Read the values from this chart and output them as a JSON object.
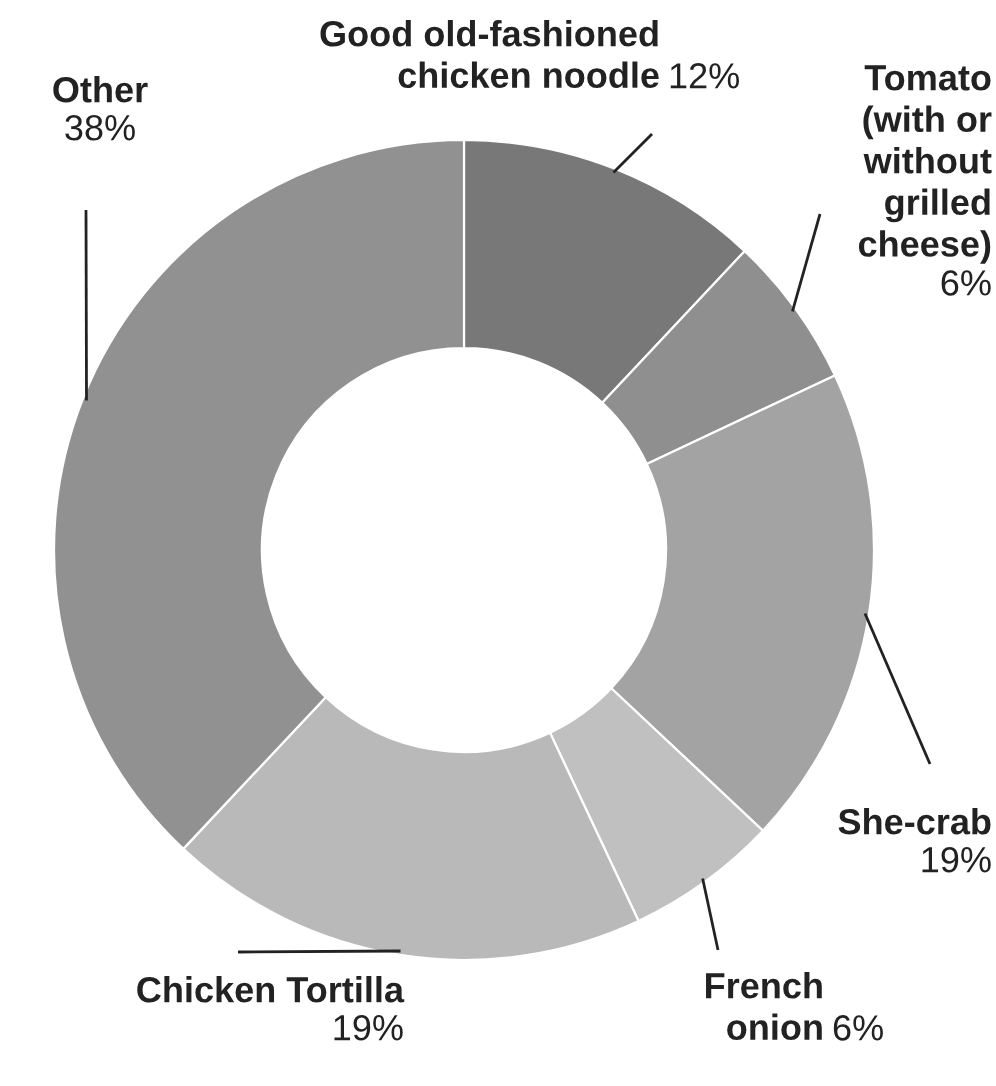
{
  "chart_data": {
    "type": "donut",
    "categories": [
      "Good old-fashioned\nchicken noodle",
      "Tomato\n(with or\nwithout\ngrilled\ncheese)",
      "She-crab",
      "French\nonion",
      "Chicken Tortilla",
      "Other"
    ],
    "values": [
      12,
      6,
      19,
      6,
      19,
      38
    ],
    "value_labels": [
      "12%",
      "6%",
      "19%",
      "6%",
      "19%",
      "38%"
    ],
    "colors": [
      "#787878",
      "#8f8f8f",
      "#a3a3a3",
      "#c0c0c0",
      "#b9b9b9",
      "#919191"
    ]
  }
}
